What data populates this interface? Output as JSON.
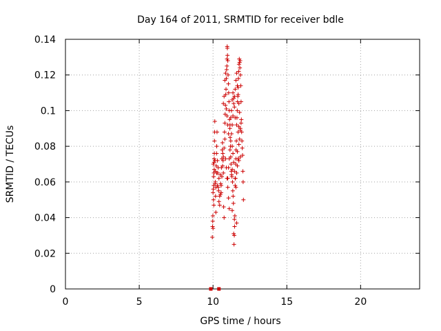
{
  "chart_data": {
    "type": "scatter",
    "title": "Day 164 of 2011, SRMTID for receiver bdle",
    "xlabel": "GPS time / hours",
    "ylabel": "SRMTID / TECUs",
    "xlim": [
      0,
      24
    ],
    "ylim": [
      0,
      0.14
    ],
    "x_ticks": [
      0,
      5,
      10,
      15,
      20
    ],
    "y_ticks": [
      0,
      0.02,
      0.04,
      0.06,
      0.08,
      0.1,
      0.12,
      0.14
    ],
    "x_tick_labels": [
      "0",
      "5",
      "10",
      "15",
      "20"
    ],
    "y_tick_labels": [
      "0",
      "0.02",
      "0.04",
      "0.06",
      "0.08",
      "0.1",
      "0.12",
      "0.14"
    ],
    "grid": true,
    "legend": "none",
    "color": "#cc0000",
    "series": [
      {
        "marker": "plus",
        "points": [
          [
            9.95,
            0.029
          ],
          [
            9.97,
            0.035
          ],
          [
            9.98,
            0.038
          ],
          [
            9.99,
            0.041
          ],
          [
            10.0,
            0.034
          ],
          [
            10.0,
            0.054
          ],
          [
            10.02,
            0.056
          ],
          [
            10.03,
            0.05
          ],
          [
            10.04,
            0.063
          ],
          [
            10.05,
            0.047
          ],
          [
            10.06,
            0.065
          ],
          [
            10.07,
            0.071
          ],
          [
            10.08,
            0.073
          ],
          [
            10.09,
            0.076
          ],
          [
            10.1,
            0.083
          ],
          [
            10.11,
            0.088
          ],
          [
            10.12,
            0.094
          ],
          [
            10.13,
            0.072
          ],
          [
            10.14,
            0.059
          ],
          [
            10.15,
            0.066
          ],
          [
            10.17,
            0.052
          ],
          [
            10.19,
            0.043
          ],
          [
            10.2,
            0.057
          ],
          [
            10.22,
            0.069
          ],
          [
            10.24,
            0.076
          ],
          [
            10.25,
            0.08
          ],
          [
            10.27,
            0.088
          ],
          [
            10.3,
            0.058
          ],
          [
            10.32,
            0.065
          ],
          [
            10.35,
            0.057
          ],
          [
            10.38,
            0.055
          ],
          [
            10.4,
            0.049
          ],
          [
            10.45,
            0.052
          ],
          [
            10.5,
            0.064
          ],
          [
            10.52,
            0.059
          ],
          [
            10.55,
            0.054
          ],
          [
            10.57,
            0.068
          ],
          [
            10.6,
            0.073
          ],
          [
            10.62,
            0.078
          ],
          [
            10.64,
            0.082
          ],
          [
            10.66,
            0.076
          ],
          [
            10.68,
            0.072
          ],
          [
            10.7,
            0.065
          ],
          [
            10.72,
            0.046
          ],
          [
            10.75,
            0.04
          ],
          [
            10.78,
            0.088
          ],
          [
            10.8,
            0.093
          ],
          [
            10.82,
            0.098
          ],
          [
            10.84,
            0.103
          ],
          [
            10.86,
            0.109
          ],
          [
            10.88,
            0.112
          ],
          [
            10.9,
            0.118
          ],
          [
            10.92,
            0.123
          ],
          [
            10.94,
            0.125
          ],
          [
            10.95,
            0.129
          ],
          [
            10.96,
            0.136
          ],
          [
            10.97,
            0.135
          ],
          [
            10.98,
            0.131
          ],
          [
            11.0,
            0.128
          ],
          [
            11.02,
            0.12
          ],
          [
            11.04,
            0.115
          ],
          [
            11.06,
            0.11
          ],
          [
            11.08,
            0.105
          ],
          [
            11.1,
            0.1
          ],
          [
            11.12,
            0.095
          ],
          [
            11.14,
            0.09
          ],
          [
            11.16,
            0.085
          ],
          [
            11.18,
            0.08
          ],
          [
            11.2,
            0.074
          ],
          [
            11.22,
            0.07
          ],
          [
            11.24,
            0.066
          ],
          [
            11.26,
            0.064
          ],
          [
            11.28,
            0.063
          ],
          [
            11.3,
            0.067
          ],
          [
            11.32,
            0.06
          ],
          [
            11.34,
            0.055
          ],
          [
            11.36,
            0.052
          ],
          [
            11.38,
            0.048
          ],
          [
            11.4,
            0.031
          ],
          [
            11.42,
            0.025
          ],
          [
            11.44,
            0.03
          ],
          [
            11.46,
            0.035
          ],
          [
            11.48,
            0.041
          ],
          [
            11.5,
            0.058
          ],
          [
            11.52,
            0.062
          ],
          [
            11.54,
            0.07
          ],
          [
            11.56,
            0.078
          ],
          [
            11.58,
            0.083
          ],
          [
            11.6,
            0.092
          ],
          [
            11.62,
            0.096
          ],
          [
            11.64,
            0.1
          ],
          [
            11.66,
            0.105
          ],
          [
            11.68,
            0.108
          ],
          [
            11.7,
            0.113
          ],
          [
            11.72,
            0.118
          ],
          [
            11.74,
            0.122
          ],
          [
            11.76,
            0.126
          ],
          [
            11.78,
            0.129
          ],
          [
            11.8,
            0.127
          ],
          [
            11.82,
            0.124
          ],
          [
            11.84,
            0.128
          ],
          [
            11.86,
            0.12
          ],
          [
            11.88,
            0.114
          ],
          [
            11.9,
            0.105
          ],
          [
            11.92,
            0.095
          ],
          [
            11.94,
            0.088
          ],
          [
            11.96,
            0.083
          ],
          [
            11.98,
            0.079
          ],
          [
            12.0,
            0.075
          ],
          [
            12.02,
            0.066
          ],
          [
            12.04,
            0.06
          ],
          [
            12.06,
            0.05
          ],
          [
            11.0,
            0.062
          ],
          [
            11.05,
            0.068
          ],
          [
            11.1,
            0.073
          ],
          [
            11.15,
            0.078
          ],
          [
            11.2,
            0.083
          ],
          [
            11.25,
            0.087
          ],
          [
            11.3,
            0.092
          ],
          [
            11.35,
            0.097
          ],
          [
            11.4,
            0.104
          ],
          [
            11.45,
            0.108
          ],
          [
            11.5,
            0.112
          ],
          [
            11.55,
            0.117
          ],
          [
            11.6,
            0.121
          ],
          [
            11.65,
            0.114
          ],
          [
            11.7,
            0.109
          ],
          [
            11.75,
            0.104
          ],
          [
            11.8,
            0.099
          ],
          [
            11.85,
            0.09
          ],
          [
            10.85,
            0.073
          ],
          [
            10.9,
            0.068
          ],
          [
            10.95,
            0.062
          ],
          [
            11.0,
            0.057
          ],
          [
            11.05,
            0.051
          ],
          [
            11.1,
            0.045
          ],
          [
            10.8,
            0.084
          ],
          [
            10.75,
            0.079
          ],
          [
            10.7,
            0.074
          ],
          [
            10.65,
            0.069
          ],
          [
            10.6,
            0.063
          ],
          [
            10.55,
            0.058
          ],
          [
            10.5,
            0.053
          ],
          [
            10.45,
            0.047
          ],
          [
            11.3,
            0.08
          ],
          [
            11.35,
            0.076
          ],
          [
            11.4,
            0.071
          ],
          [
            11.45,
            0.066
          ],
          [
            11.5,
            0.062
          ],
          [
            11.55,
            0.057
          ],
          [
            11.6,
            0.065
          ],
          [
            11.65,
            0.069
          ],
          [
            11.7,
            0.073
          ],
          [
            11.75,
            0.072
          ],
          [
            11.8,
            0.084
          ],
          [
            11.85,
            0.089
          ],
          [
            11.9,
            0.093
          ],
          [
            11.6,
            0.037
          ],
          [
            11.45,
            0.039
          ],
          [
            11.3,
            0.044
          ],
          [
            10.9,
            0.101
          ],
          [
            10.95,
            0.097
          ],
          [
            11.0,
            0.092
          ],
          [
            11.05,
            0.087
          ],
          [
            10.85,
            0.121
          ],
          [
            10.8,
            0.117
          ],
          [
            10.75,
            0.108
          ],
          [
            10.7,
            0.104
          ],
          [
            11.7,
            0.088
          ],
          [
            11.75,
            0.091
          ],
          [
            11.15,
            0.092
          ],
          [
            11.2,
            0.096
          ],
          [
            11.25,
            0.1
          ],
          [
            11.3,
            0.106
          ],
          [
            11.35,
            0.11
          ],
          [
            11.4,
            0.107
          ],
          [
            11.45,
            0.102
          ],
          [
            11.5,
            0.096
          ],
          [
            10.3,
            0.072
          ],
          [
            10.35,
            0.068
          ],
          [
            10.4,
            0.062
          ],
          [
            10.25,
            0.065
          ],
          [
            10.15,
            0.06
          ],
          [
            10.05,
            0.058
          ],
          [
            10.02,
            0.07
          ],
          [
            10.08,
            0.067
          ],
          [
            11.55,
            0.073
          ],
          [
            11.65,
            0.077
          ],
          [
            11.75,
            0.081
          ],
          [
            11.85,
            0.074
          ]
        ]
      },
      {
        "marker": "square",
        "points": [
          [
            9.85,
            0.0
          ],
          [
            10.4,
            0.0
          ]
        ]
      }
    ]
  }
}
